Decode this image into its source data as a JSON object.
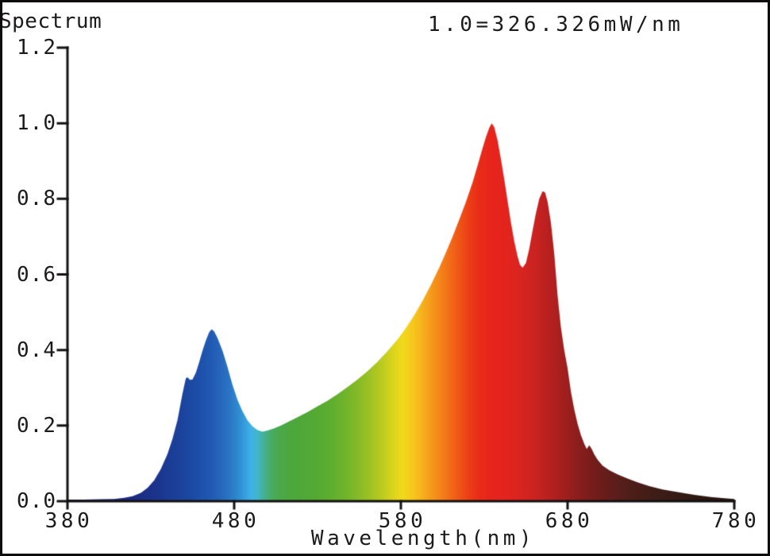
{
  "header": {
    "title": "Spectrum",
    "scale_note": "1.0=326.326mW/nm"
  },
  "chart_data": {
    "type": "area",
    "title": "Spectrum",
    "subtitle": "1.0=326.326mW/nm",
    "xlabel": "Wavelength(nm)",
    "ylabel": "",
    "xlim": [
      380,
      780
    ],
    "ylim": [
      0.0,
      1.2
    ],
    "grid": false,
    "legend": "none",
    "x_ticks": [
      380,
      480,
      580,
      680,
      780
    ],
    "x_tick_labels": [
      "380",
      "480",
      "580",
      "680",
      "780"
    ],
    "y_ticks": [
      0.0,
      0.2,
      0.4,
      0.6,
      0.8,
      1.0,
      1.2
    ],
    "y_tick_labels": [
      "0.0",
      "0.2",
      "0.4",
      "0.6",
      "0.8",
      "1.0",
      "1.2"
    ],
    "axis_color": "#141111",
    "notable_points": {
      "blue_shoulder": [
        451,
        0.33
      ],
      "blue_peak": [
        467,
        0.455
      ],
      "green_valley": [
        497,
        0.185
      ],
      "red_main_peak": [
        634.5,
        1.0
      ],
      "red_saddle": [
        652,
        0.62
      ],
      "red_second_peak": [
        665,
        0.82
      ],
      "far_red_bump": [
        693,
        0.148
      ]
    },
    "series": [
      {
        "name": "relative spectral power",
        "points": [
          [
            380,
            0.004
          ],
          [
            390,
            0.004
          ],
          [
            400,
            0.005
          ],
          [
            408,
            0.006
          ],
          [
            414,
            0.009
          ],
          [
            419,
            0.013
          ],
          [
            424,
            0.022
          ],
          [
            428,
            0.035
          ],
          [
            432,
            0.055
          ],
          [
            436,
            0.085
          ],
          [
            440,
            0.125
          ],
          [
            443,
            0.165
          ],
          [
            446,
            0.215
          ],
          [
            449,
            0.285
          ],
          [
            451,
            0.325
          ],
          [
            452,
            0.328
          ],
          [
            453.5,
            0.321
          ],
          [
            455,
            0.322
          ],
          [
            457,
            0.34
          ],
          [
            459,
            0.368
          ],
          [
            461,
            0.398
          ],
          [
            463,
            0.425
          ],
          [
            465,
            0.447
          ],
          [
            466.5,
            0.455
          ],
          [
            468,
            0.449
          ],
          [
            470,
            0.432
          ],
          [
            473,
            0.398
          ],
          [
            476,
            0.355
          ],
          [
            479,
            0.308
          ],
          [
            482,
            0.268
          ],
          [
            485,
            0.238
          ],
          [
            488,
            0.214
          ],
          [
            491,
            0.198
          ],
          [
            494,
            0.188
          ],
          [
            497,
            0.184
          ],
          [
            500,
            0.187
          ],
          [
            504,
            0.193
          ],
          [
            508,
            0.2
          ],
          [
            513,
            0.211
          ],
          [
            518,
            0.222
          ],
          [
            524,
            0.236
          ],
          [
            530,
            0.251
          ],
          [
            536,
            0.266
          ],
          [
            542,
            0.283
          ],
          [
            548,
            0.302
          ],
          [
            554,
            0.322
          ],
          [
            560,
            0.344
          ],
          [
            566,
            0.369
          ],
          [
            572,
            0.397
          ],
          [
            578,
            0.428
          ],
          [
            583,
            0.458
          ],
          [
            588,
            0.492
          ],
          [
            593,
            0.53
          ],
          [
            598,
            0.572
          ],
          [
            603,
            0.618
          ],
          [
            607,
            0.658
          ],
          [
            611,
            0.7
          ],
          [
            615,
            0.745
          ],
          [
            619,
            0.792
          ],
          [
            623,
            0.843
          ],
          [
            626,
            0.888
          ],
          [
            629,
            0.934
          ],
          [
            631,
            0.963
          ],
          [
            633,
            0.988
          ],
          [
            634.5,
            1.0
          ],
          [
            636,
            0.99
          ],
          [
            638,
            0.955
          ],
          [
            640,
            0.905
          ],
          [
            642,
            0.852
          ],
          [
            644,
            0.795
          ],
          [
            646,
            0.738
          ],
          [
            648,
            0.688
          ],
          [
            650,
            0.648
          ],
          [
            651.5,
            0.625
          ],
          [
            653,
            0.618
          ],
          [
            655,
            0.63
          ],
          [
            657,
            0.668
          ],
          [
            659,
            0.716
          ],
          [
            661,
            0.762
          ],
          [
            663,
            0.8
          ],
          [
            665,
            0.82
          ],
          [
            666.5,
            0.817
          ],
          [
            668,
            0.793
          ],
          [
            670,
            0.737
          ],
          [
            672,
            0.655
          ],
          [
            674,
            0.545
          ],
          [
            676,
            0.46
          ],
          [
            678,
            0.4
          ],
          [
            680,
            0.352
          ],
          [
            682,
            0.29
          ],
          [
            684,
            0.243
          ],
          [
            686,
            0.205
          ],
          [
            688,
            0.175
          ],
          [
            690,
            0.152
          ],
          [
            691.5,
            0.138
          ],
          [
            693,
            0.148
          ],
          [
            694.5,
            0.138
          ],
          [
            696,
            0.124
          ],
          [
            698,
            0.11
          ],
          [
            701,
            0.094
          ],
          [
            705,
            0.082
          ],
          [
            710,
            0.071
          ],
          [
            716,
            0.06
          ],
          [
            722,
            0.05
          ],
          [
            729,
            0.04
          ],
          [
            737,
            0.031
          ],
          [
            746,
            0.024
          ],
          [
            756,
            0.017
          ],
          [
            766,
            0.011
          ],
          [
            774,
            0.008
          ],
          [
            780,
            0.006
          ]
        ]
      }
    ],
    "gradient_stops": [
      [
        380,
        "#111a52"
      ],
      [
        400,
        "#16206b"
      ],
      [
        418,
        "#1b2a7e"
      ],
      [
        432,
        "#1c338c"
      ],
      [
        445,
        "#1b4099"
      ],
      [
        455,
        "#1b4aa4"
      ],
      [
        463,
        "#1f55af"
      ],
      [
        470,
        "#2562b8"
      ],
      [
        477,
        "#2b74c4"
      ],
      [
        484,
        "#3092d6"
      ],
      [
        490,
        "#3fb2e7"
      ],
      [
        494,
        "#41b6c9"
      ],
      [
        498,
        "#44b193"
      ],
      [
        502,
        "#48ac64"
      ],
      [
        507,
        "#4aa94b"
      ],
      [
        514,
        "#4da73d"
      ],
      [
        522,
        "#50a838"
      ],
      [
        530,
        "#55aa33"
      ],
      [
        538,
        "#5fae2f"
      ],
      [
        546,
        "#6fb32c"
      ],
      [
        554,
        "#85ba28"
      ],
      [
        562,
        "#a0c323"
      ],
      [
        570,
        "#c1cd1f"
      ],
      [
        576,
        "#dfd51c"
      ],
      [
        581,
        "#f0da1b"
      ],
      [
        586,
        "#f6cb1d"
      ],
      [
        591,
        "#f6b91c"
      ],
      [
        597,
        "#f5a01b"
      ],
      [
        603,
        "#f4871a"
      ],
      [
        609,
        "#f26d18"
      ],
      [
        615,
        "#ef5517"
      ],
      [
        621,
        "#ec3e16"
      ],
      [
        627,
        "#e92c18"
      ],
      [
        634,
        "#e7251c"
      ],
      [
        645,
        "#e2241e"
      ],
      [
        653,
        "#d82420"
      ],
      [
        660,
        "#cb2321"
      ],
      [
        667,
        "#bc2120"
      ],
      [
        674,
        "#ab201f"
      ],
      [
        681,
        "#991f1e"
      ],
      [
        688,
        "#871e1d"
      ],
      [
        695,
        "#761d1c"
      ],
      [
        702,
        "#681d1b"
      ],
      [
        710,
        "#5b1e1b"
      ],
      [
        719,
        "#4e1e19"
      ],
      [
        728,
        "#441d18"
      ],
      [
        738,
        "#3b1c16"
      ],
      [
        749,
        "#331a14"
      ],
      [
        760,
        "#2d1812"
      ],
      [
        780,
        "#261510"
      ]
    ]
  }
}
